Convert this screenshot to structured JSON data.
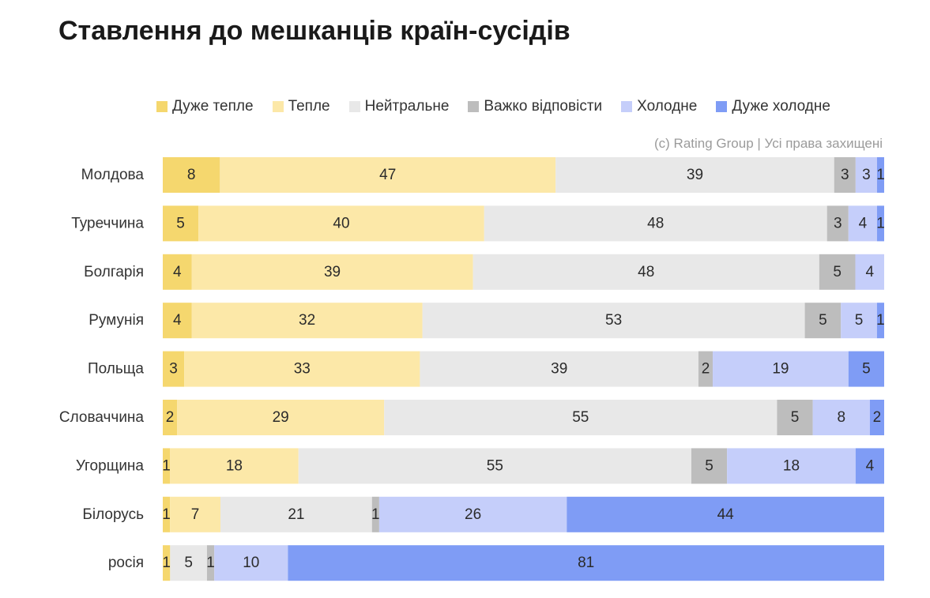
{
  "chart_data": {
    "type": "bar",
    "orientation": "horizontal",
    "stacked": true,
    "title": "Ставлення до мешканців країн-сусідів",
    "source": "(c) Rating Group | Усі права захищені",
    "legend_position": "top",
    "xlim": [
      0,
      100
    ],
    "categories": [
      "Молдова",
      "Туреччина",
      "Болгарія",
      "Румунія",
      "Польща",
      "Словаччина",
      "Угорщина",
      "Білорусь",
      "росія"
    ],
    "series": [
      {
        "name": "Дуже тепле",
        "color": "#F5D76E",
        "values": [
          8,
          5,
          4,
          4,
          3,
          2,
          1,
          1,
          1
        ]
      },
      {
        "name": "Тепле",
        "color": "#FCE8A8",
        "values": [
          47,
          40,
          39,
          32,
          33,
          29,
          18,
          7,
          0
        ]
      },
      {
        "name": "Нейтральне",
        "color": "#E8E8E8",
        "values": [
          39,
          48,
          48,
          53,
          39,
          55,
          55,
          21,
          5
        ]
      },
      {
        "name": "Важко відповісти",
        "color": "#BDBDBD",
        "values": [
          3,
          3,
          5,
          5,
          2,
          5,
          5,
          1,
          1
        ]
      },
      {
        "name": "Холодне",
        "color": "#C5CEFA",
        "values": [
          3,
          4,
          4,
          5,
          19,
          8,
          18,
          26,
          10
        ]
      },
      {
        "name": "Дуже холодне",
        "color": "#7F9CF5",
        "values": [
          1,
          1,
          0,
          1,
          5,
          2,
          4,
          44,
          81
        ]
      }
    ]
  }
}
